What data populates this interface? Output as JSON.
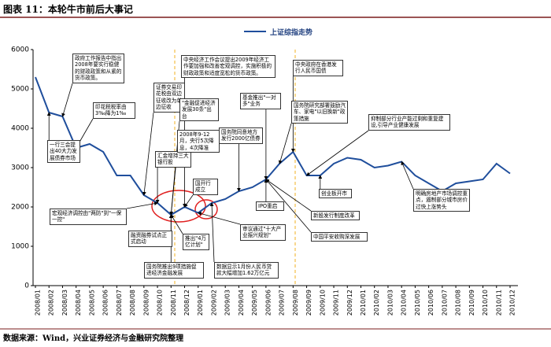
{
  "chart_data": {
    "type": "line",
    "title": "图表 11：本轮牛市前后大事记",
    "source": "数据来源：Wind，兴业证券经济与金融研究院整理",
    "categories": [
      "2008/01",
      "2008/02",
      "2008/03",
      "2008/04",
      "2008/05",
      "2008/06",
      "2008/07",
      "2008/08",
      "2008/09",
      "2008/10",
      "2008/11",
      "2008/12",
      "2009/01",
      "2009/02",
      "2009/03",
      "2009/04",
      "2009/05",
      "2009/06",
      "2009/07",
      "2009/08",
      "2009/09",
      "2009/10",
      "2009/11",
      "2009/12",
      "2010/01",
      "2010/02",
      "2010/03",
      "2010/04",
      "2010/05",
      "2010/06",
      "2010/07",
      "2010/08",
      "2010/09",
      "2010/10",
      "2010/11",
      "2010/12"
    ],
    "series": [
      {
        "name": "上证综指走势",
        "color": "#1f4e9c",
        "values": [
          5300,
          4400,
          4300,
          3500,
          3600,
          3400,
          2800,
          2800,
          2300,
          2100,
          1800,
          2000,
          1850,
          2100,
          2200,
          2400,
          2500,
          2700,
          3100,
          3400,
          2800,
          2800,
          3100,
          3250,
          3200,
          3000,
          3050,
          3150,
          2800,
          2600,
          2400,
          2600,
          2650,
          2700,
          3100,
          2850
        ]
      }
    ],
    "ylim": [
      0,
      6000
    ],
    "yticks": [
      0,
      1000,
      2000,
      3000,
      4000,
      5000,
      6000
    ],
    "annotations": [
      "一行三会提出40大力发展债券市场",
      "政府工作报告中指出2008年要实行稳健的财政政策和从紧的货币政策。",
      "印花税税率由3‰降为1‰",
      "证券交易印花税由双边征收改为单边征收",
      "宏观经济调控由\"两防\"到\"一保一控\"",
      "汇金增持三大银行股",
      "融资融券试点正式启动",
      "中央经济工作会议提出2009年经济工作要加强和改善宏观调控，实施积极的财政政策和适度宽松的货币政策。",
      "\"金融促进经济发展30条\"出台",
      "2008年9-12月，央行5次降息，4次降准",
      "国务院推出9项措施促进经济金融发展",
      "推出\"4万亿计划\"",
      "国开行成立",
      "审议通过\"十大产业振兴规划\"",
      "数据显示1月份人民币贷款大幅增加1.62万亿元",
      "国务院同意地方发行2000亿债券",
      "基金推出\"一对多\"业务",
      "IPO重启",
      "中央政府在香港发行人民币国债",
      "国务院研究部署鼓励汽车、家电\"以旧换新\"政策措施",
      "新股发行制度改革",
      "中国平安收购深发展",
      "抑制部分行业产能过剩和重复建设,引导产业健康发展",
      "创业板开市",
      "明确房地产市场调控重点，遏制部分城市房价过快上涨势头"
    ]
  }
}
